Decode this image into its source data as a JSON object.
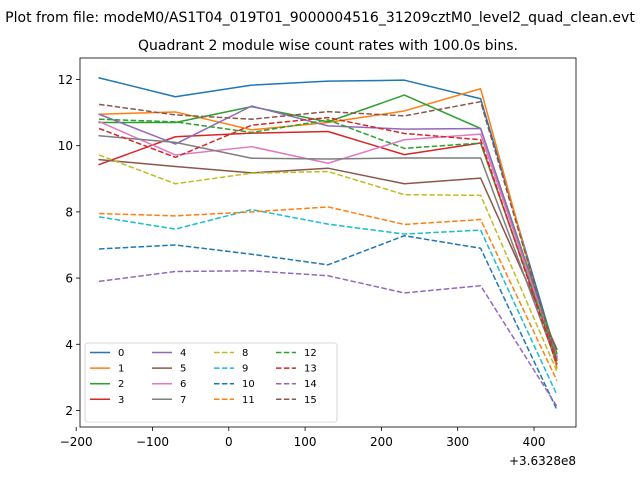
{
  "chart_data": {
    "type": "line",
    "suptitle": "Plot from file: modeM0/AS1T04_019T01_9000004516_31209cztM0_level2_quad_clean.evt",
    "title": "Quadrant 2 module wise count rates with 100.0s bins.",
    "xlabel": "",
    "ylabel": "",
    "x_offset_label": "+3.6328e8",
    "xlim": [
      -195,
      455
    ],
    "ylim": [
      1.5,
      12.65
    ],
    "xticks": [
      -200,
      -100,
      0,
      100,
      200,
      300,
      400
    ],
    "xtick_labels": [
      "−200",
      "−100",
      "0",
      "100",
      "200",
      "300",
      "400"
    ],
    "yticks": [
      2,
      4,
      6,
      8,
      10,
      12
    ],
    "ytick_labels": [
      "2",
      "4",
      "6",
      "8",
      "10",
      "12"
    ],
    "x": [
      -170,
      -70,
      30,
      130,
      230,
      330,
      430
    ],
    "legend_position": "lower-left",
    "legend_columns": 4,
    "series": [
      {
        "name": "0",
        "color": "#1f77b4",
        "dash": "solid",
        "values": [
          12.05,
          11.48,
          11.83,
          11.95,
          11.98,
          11.42,
          3.62
        ]
      },
      {
        "name": "1",
        "color": "#ff7f0e",
        "dash": "solid",
        "values": [
          10.95,
          11.02,
          10.48,
          10.7,
          11.05,
          11.72,
          3.28
        ]
      },
      {
        "name": "2",
        "color": "#2ca02c",
        "dash": "solid",
        "values": [
          10.7,
          10.7,
          11.18,
          10.72,
          11.53,
          10.52,
          3.72
        ]
      },
      {
        "name": "3",
        "color": "#d62728",
        "dash": "solid",
        "values": [
          9.43,
          10.27,
          10.38,
          10.43,
          9.73,
          10.08,
          3.52
        ]
      },
      {
        "name": "4",
        "color": "#9467bd",
        "dash": "solid",
        "values": [
          10.95,
          10.05,
          11.2,
          10.6,
          10.5,
          10.52,
          3.62
        ]
      },
      {
        "name": "5",
        "color": "#8c564b",
        "dash": "solid",
        "values": [
          9.58,
          9.37,
          9.18,
          9.32,
          8.85,
          9.02,
          3.85
        ]
      },
      {
        "name": "6",
        "color": "#e377c2",
        "dash": "solid",
        "values": [
          10.73,
          9.72,
          9.97,
          9.47,
          10.18,
          10.35,
          3.58
        ]
      },
      {
        "name": "7",
        "color": "#7f7f7f",
        "dash": "solid",
        "values": [
          10.3,
          10.1,
          9.62,
          9.6,
          9.63,
          9.63,
          3.42
        ]
      },
      {
        "name": "8",
        "color": "#bcbd22",
        "dash": "dashed",
        "values": [
          9.72,
          8.85,
          9.17,
          9.22,
          8.52,
          8.5,
          3.18
        ]
      },
      {
        "name": "9",
        "color": "#17becf",
        "dash": "dashed",
        "values": [
          7.85,
          7.48,
          8.07,
          7.63,
          7.33,
          7.45,
          2.47
        ]
      },
      {
        "name": "10",
        "color": "#1f77b4",
        "dash": "dashed",
        "values": [
          6.88,
          7.0,
          6.72,
          6.4,
          7.28,
          6.9,
          2.02
        ]
      },
      {
        "name": "11",
        "color": "#ff7f0e",
        "dash": "dashed",
        "values": [
          7.95,
          7.88,
          8.0,
          8.15,
          7.62,
          7.77,
          2.9
        ]
      },
      {
        "name": "12",
        "color": "#2ca02c",
        "dash": "dashed",
        "values": [
          10.8,
          10.72,
          10.4,
          10.78,
          9.92,
          10.08,
          3.55
        ]
      },
      {
        "name": "13",
        "color": "#d62728",
        "dash": "dashed",
        "values": [
          10.52,
          9.65,
          10.62,
          10.85,
          10.37,
          10.18,
          3.38
        ]
      },
      {
        "name": "14",
        "color": "#9467bd",
        "dash": "dashed",
        "values": [
          5.9,
          6.2,
          6.22,
          6.07,
          5.55,
          5.77,
          2.12
        ]
      },
      {
        "name": "15",
        "color": "#8c564b",
        "dash": "dashed",
        "values": [
          11.25,
          10.93,
          10.8,
          11.03,
          10.9,
          11.33,
          3.5
        ]
      }
    ]
  }
}
